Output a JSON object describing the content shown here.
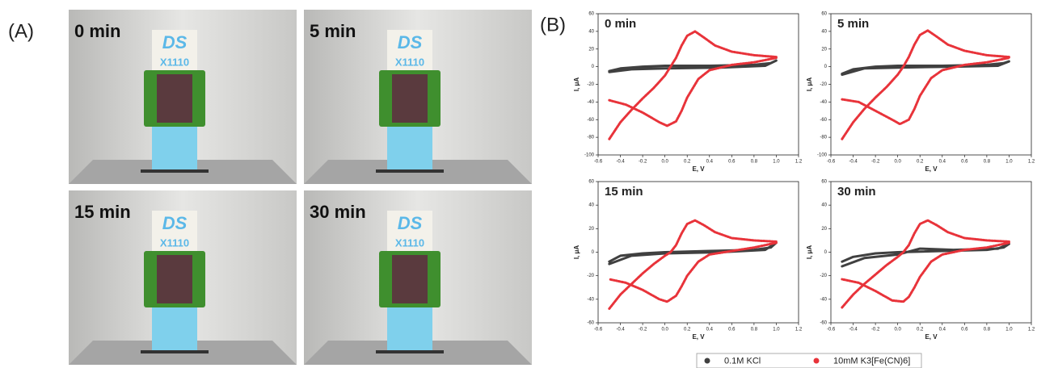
{
  "panel_labels": [
    "(A)",
    "(B)"
  ],
  "photos": [
    {
      "label": "0 min",
      "card": [
        "DS",
        "X1110"
      ]
    },
    {
      "label": "5 min",
      "card": [
        "DS",
        "X1110"
      ]
    },
    {
      "label": "15 min",
      "card": [
        "DS",
        "X1110"
      ]
    },
    {
      "label": "30 min",
      "card": [
        "DS",
        "X1110"
      ]
    }
  ],
  "chart_data": [
    {
      "type": "line",
      "title": "0 min",
      "x_label": "E, V",
      "y_label": "I, μA",
      "xlim": [
        -0.6,
        1.2
      ],
      "xticks": [
        -0.6,
        -0.4,
        -0.2,
        {
          "value": 0,
          "label": "0.0"
        },
        0.2,
        0.4,
        0.6,
        0.8,
        {
          "value": 1,
          "label": "1.0"
        },
        1.2
      ],
      "ylim": [
        -100,
        60
      ],
      "yticks": [
        -100,
        -80,
        -60,
        -40,
        -20,
        0,
        20,
        40,
        60
      ],
      "series": [
        {
          "name": "0.1M KCl",
          "color": "#404040",
          "x": [
            -0.5,
            -0.4,
            -0.2,
            0,
            0.4,
            0.8,
            0.95,
            1.0,
            0.9,
            0.5,
            0,
            -0.3,
            -0.5
          ],
          "values": [
            -5,
            -2,
            0,
            1,
            1,
            2,
            4,
            7,
            1,
            -1,
            -2,
            -3,
            -6
          ]
        },
        {
          "name": "10mM K3[Fe(CN)6]",
          "color": "#e8333a",
          "x": [
            -0.5,
            -0.4,
            -0.3,
            -0.2,
            -0.1,
            0,
            0.05,
            0.1,
            0.15,
            0.2,
            0.27,
            0.35,
            0.45,
            0.6,
            0.8,
            1.0,
            1.0,
            0.8,
            0.6,
            0.4,
            0.3,
            0.2,
            0.15,
            0.1,
            0.02,
            -0.05,
            -0.2,
            -0.35,
            -0.5
          ],
          "values": [
            -82,
            -63,
            -49,
            -36,
            -24,
            -10,
            0,
            10,
            24,
            35,
            40,
            33,
            24,
            17,
            13,
            11,
            10,
            5,
            2,
            -4,
            -14,
            -35,
            -50,
            -62,
            -67,
            -63,
            -52,
            -43,
            -38
          ]
        }
      ]
    },
    {
      "type": "line",
      "title": "5 min",
      "x_label": "E, V",
      "y_label": "I, μA",
      "xlim": [
        -0.6,
        1.2
      ],
      "xticks": [
        -0.6,
        -0.4,
        -0.2,
        {
          "value": 0,
          "label": "0.0"
        },
        0.2,
        0.4,
        0.6,
        0.8,
        {
          "value": 1,
          "label": "1.0"
        },
        1.2
      ],
      "ylim": [
        -100,
        60
      ],
      "yticks": [
        -100,
        -80,
        -60,
        -40,
        -20,
        0,
        20,
        40,
        60
      ],
      "series": [
        {
          "color": "#404040",
          "x": [
            -0.5,
            -0.4,
            -0.2,
            0,
            0.4,
            0.8,
            0.95,
            1.0,
            0.9,
            0.5,
            0,
            -0.3,
            -0.5
          ],
          "values": [
            -8,
            -3,
            0,
            1,
            1,
            2,
            4,
            6,
            1,
            0,
            -1,
            -2,
            -9
          ]
        },
        {
          "color": "#e8333a",
          "x": [
            -0.5,
            -0.4,
            -0.3,
            -0.2,
            -0.1,
            0,
            0.05,
            0.1,
            0.15,
            0.2,
            0.27,
            0.35,
            0.45,
            0.6,
            0.8,
            1.0,
            1.0,
            0.8,
            0.6,
            0.4,
            0.3,
            0.2,
            0.15,
            0.1,
            0.02,
            -0.05,
            -0.2,
            -0.35,
            -0.5
          ],
          "values": [
            -82,
            -63,
            -48,
            -35,
            -23,
            -9,
            0,
            11,
            25,
            36,
            41,
            34,
            25,
            18,
            13,
            11,
            10,
            5,
            2,
            -4,
            -13,
            -33,
            -48,
            -60,
            -65,
            -60,
            -50,
            -40,
            -37
          ]
        }
      ]
    },
    {
      "type": "line",
      "title": "15 min",
      "x_label": "E, V",
      "y_label": "I, μA",
      "xlim": [
        -0.6,
        1.2
      ],
      "xticks": [
        -0.6,
        -0.4,
        -0.2,
        {
          "value": 0,
          "label": "0.0"
        },
        0.2,
        0.4,
        0.6,
        0.8,
        {
          "value": 1,
          "label": "1.0"
        },
        1.2
      ],
      "ylim": [
        -60,
        60
      ],
      "yticks": [
        -60,
        -40,
        -20,
        0,
        20,
        40,
        60
      ],
      "series": [
        {
          "color": "#404040",
          "x": [
            -0.5,
            -0.4,
            -0.2,
            0,
            0.4,
            0.8,
            0.95,
            1.0,
            0.9,
            0.5,
            0,
            -0.3,
            -0.5
          ],
          "values": [
            -8,
            -3,
            -1,
            0,
            1,
            2,
            4,
            8,
            2,
            0,
            -1,
            -3,
            -10
          ]
        },
        {
          "color": "#e8333a",
          "x": [
            -0.5,
            -0.4,
            -0.3,
            -0.2,
            -0.1,
            0,
            0.05,
            0.1,
            0.15,
            0.2,
            0.27,
            0.35,
            0.45,
            0.6,
            0.8,
            1.0,
            1.0,
            0.8,
            0.6,
            0.4,
            0.3,
            0.2,
            0.15,
            0.1,
            0.02,
            -0.05,
            -0.2,
            -0.35,
            -0.5
          ],
          "values": [
            -48,
            -36,
            -27,
            -18,
            -10,
            -3,
            0,
            6,
            16,
            24,
            27,
            23,
            17,
            12,
            10,
            9,
            8,
            4,
            1,
            -2,
            -8,
            -20,
            -29,
            -37,
            -42,
            -40,
            -32,
            -26,
            -23
          ]
        }
      ]
    },
    {
      "type": "line",
      "title": "30 min",
      "x_label": "E, V",
      "y_label": "I, μA",
      "xlim": [
        -0.6,
        1.2
      ],
      "xticks": [
        -0.6,
        -0.4,
        -0.2,
        {
          "value": 0,
          "label": "0.0"
        },
        0.2,
        0.4,
        0.6,
        0.8,
        {
          "value": 1,
          "label": "1.0"
        },
        1.2
      ],
      "ylim": [
        -60,
        60
      ],
      "yticks": [
        -60,
        -40,
        -20,
        0,
        20,
        40,
        60
      ],
      "series": [
        {
          "color": "#404040",
          "x": [
            -0.5,
            -0.4,
            -0.2,
            0,
            0.4,
            0.8,
            0.95,
            1.0,
            0.9,
            0.5,
            0.2,
            0,
            -0.3,
            -0.5
          ],
          "values": [
            -8,
            -4,
            -1,
            0,
            1,
            2,
            4,
            7,
            3,
            2,
            3,
            -2,
            -5,
            -12
          ]
        },
        {
          "color": "#e8333a",
          "x": [
            -0.5,
            -0.4,
            -0.3,
            -0.2,
            -0.1,
            0,
            0.05,
            0.1,
            0.15,
            0.2,
            0.27,
            0.35,
            0.45,
            0.6,
            0.8,
            1.0,
            1.0,
            0.8,
            0.6,
            0.4,
            0.3,
            0.2,
            0.15,
            0.1,
            0.05,
            -0.05,
            -0.2,
            -0.35,
            -0.5
          ],
          "values": [
            -47,
            -36,
            -27,
            -19,
            -11,
            -4,
            0,
            6,
            16,
            24,
            27,
            23,
            17,
            12,
            10,
            9,
            8,
            4,
            2,
            -2,
            -8,
            -21,
            -30,
            -38,
            -42,
            -41,
            -33,
            -26,
            -23
          ]
        }
      ]
    }
  ]
}
